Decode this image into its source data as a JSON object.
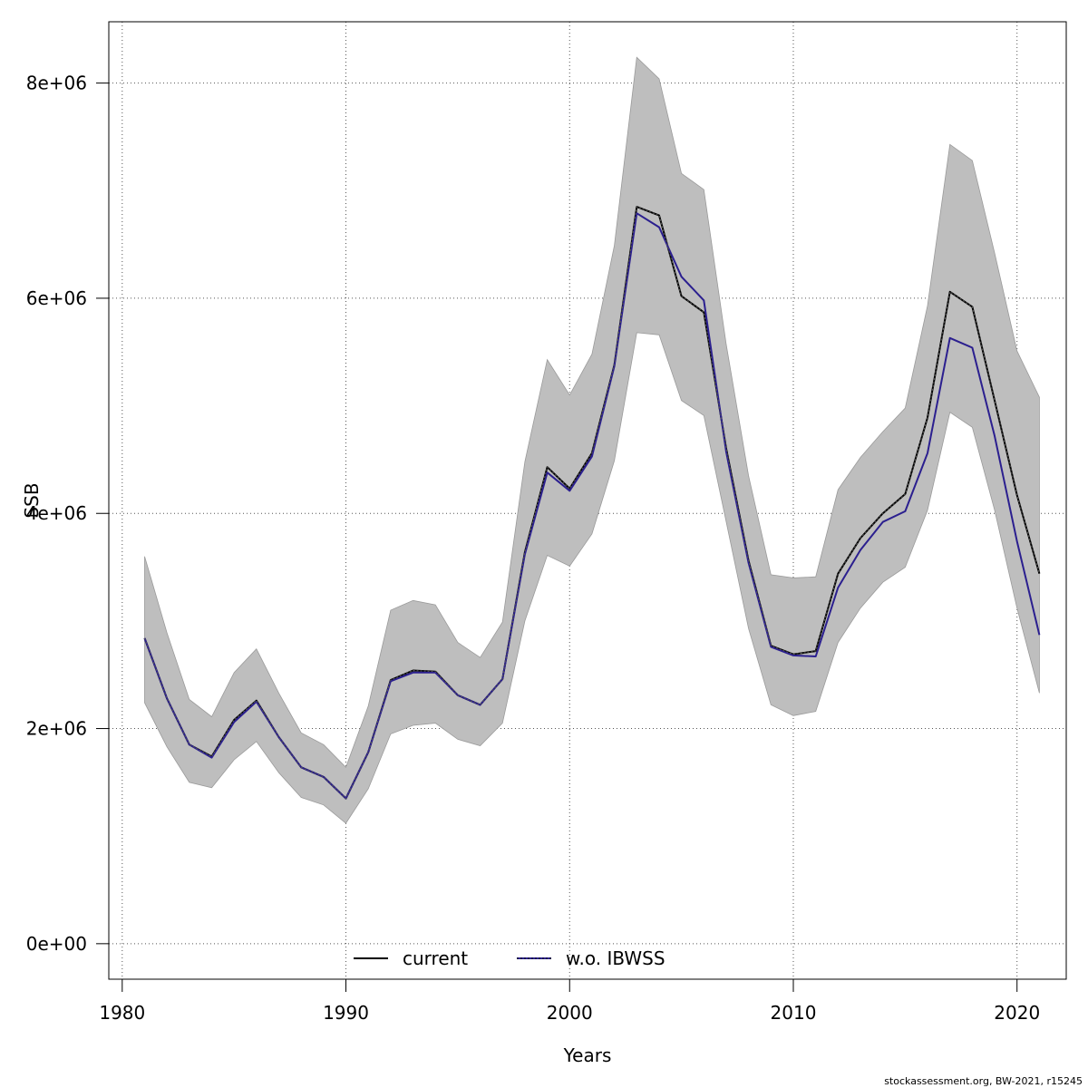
{
  "chart_data": {
    "type": "line",
    "title": "",
    "xlabel": "Years",
    "ylabel": "SSB",
    "xlim": [
      1979.4,
      1982.2
    ],
    "x_range": [
      1979.4,
      2022.2
    ],
    "ylim": [
      -330000,
      8570000
    ],
    "grid": true,
    "legend_position": "bottom",
    "x_ticks": [
      1980,
      1990,
      2000,
      2010,
      2020
    ],
    "x_tick_labels": [
      "1980",
      "1990",
      "2000",
      "2010",
      "2020"
    ],
    "y_ticks": [
      0,
      2000000,
      4000000,
      6000000,
      8000000
    ],
    "y_tick_labels": [
      "0e+00",
      "2e+06",
      "4e+06",
      "6e+06",
      "8e+06"
    ],
    "x": [
      1981,
      1982,
      1983,
      1984,
      1985,
      1986,
      1987,
      1988,
      1989,
      1990,
      1991,
      1992,
      1993,
      1994,
      1995,
      1996,
      1997,
      1998,
      1999,
      2000,
      2001,
      2002,
      2003,
      2004,
      2005,
      2006,
      2007,
      2008,
      2009,
      2010,
      2011,
      2012,
      2013,
      2014,
      2015,
      2016,
      2017,
      2018,
      2019,
      2020,
      2021
    ],
    "band": {
      "color": "#bebebe",
      "lower": [
        2240000,
        1830000,
        1500000,
        1450000,
        1710000,
        1880000,
        1590000,
        1360000,
        1290000,
        1120000,
        1440000,
        1950000,
        2030000,
        2050000,
        1900000,
        1840000,
        2050000,
        3000000,
        3610000,
        3510000,
        3810000,
        4490000,
        5680000,
        5660000,
        5050000,
        4910000,
        3920000,
        2930000,
        2220000,
        2120000,
        2160000,
        2800000,
        3120000,
        3360000,
        3500000,
        4030000,
        4940000,
        4800000,
        4030000,
        3120000,
        2330000
      ],
      "upper": [
        3600000,
        2890000,
        2270000,
        2110000,
        2520000,
        2740000,
        2330000,
        1960000,
        1850000,
        1640000,
        2210000,
        3100000,
        3190000,
        3150000,
        2800000,
        2660000,
        2990000,
        4480000,
        5430000,
        5100000,
        5480000,
        6490000,
        8240000,
        8040000,
        7160000,
        7010000,
        5570000,
        4350000,
        3430000,
        3400000,
        3410000,
        4220000,
        4520000,
        4760000,
        4980000,
        5930000,
        7430000,
        7280000,
        6420000,
        5510000,
        5080000
      ]
    },
    "series": [
      {
        "name": "current",
        "color": "#000000",
        "values": [
          2840000,
          2280000,
          1850000,
          1740000,
          2080000,
          2260000,
          1920000,
          1640000,
          1550000,
          1350000,
          1780000,
          2450000,
          2540000,
          2530000,
          2310000,
          2220000,
          2460000,
          3640000,
          4430000,
          4230000,
          4560000,
          5380000,
          6850000,
          6770000,
          6020000,
          5870000,
          4600000,
          3560000,
          2770000,
          2690000,
          2720000,
          3440000,
          3770000,
          4000000,
          4180000,
          4890000,
          6060000,
          5920000,
          5050000,
          4170000,
          3440000
        ]
      },
      {
        "name": "w.o. IBWSS",
        "color": "#2b1f8f",
        "values": [
          2840000,
          2280000,
          1850000,
          1730000,
          2060000,
          2250000,
          1920000,
          1640000,
          1550000,
          1350000,
          1780000,
          2440000,
          2520000,
          2520000,
          2310000,
          2220000,
          2460000,
          3620000,
          4380000,
          4210000,
          4530000,
          5370000,
          6790000,
          6660000,
          6200000,
          5980000,
          4570000,
          3540000,
          2760000,
          2680000,
          2670000,
          3310000,
          3660000,
          3920000,
          4020000,
          4560000,
          5630000,
          5540000,
          4720000,
          3740000,
          2870000
        ]
      }
    ],
    "footer": "stockassessment.org, BW-2021, r15245"
  }
}
